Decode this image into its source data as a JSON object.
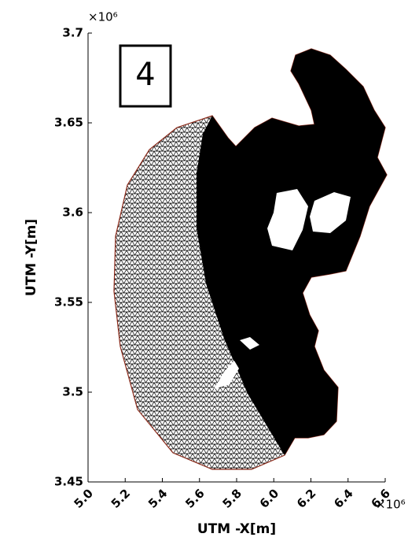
{
  "chart_data": {
    "type": "mesh",
    "panel_label": "4",
    "xlabel": "UTM -X[m]",
    "ylabel": "UTM -Y[m]",
    "x_offset_label": "×10⁶",
    "y_offset_label": "×10⁶",
    "xlim": [
      5.0,
      6.6
    ],
    "xticks": [
      {
        "value": 5.0,
        "label": "5.0"
      },
      5.2,
      5.4,
      5.6,
      5.8,
      {
        "value": 6.0,
        "label": "6.0"
      },
      6.2,
      6.4,
      6.6
    ],
    "ylim": [
      3.45,
      3.7
    ],
    "yticks": [
      3.45,
      3.5,
      3.55,
      3.6,
      3.65,
      3.7
    ]
  }
}
